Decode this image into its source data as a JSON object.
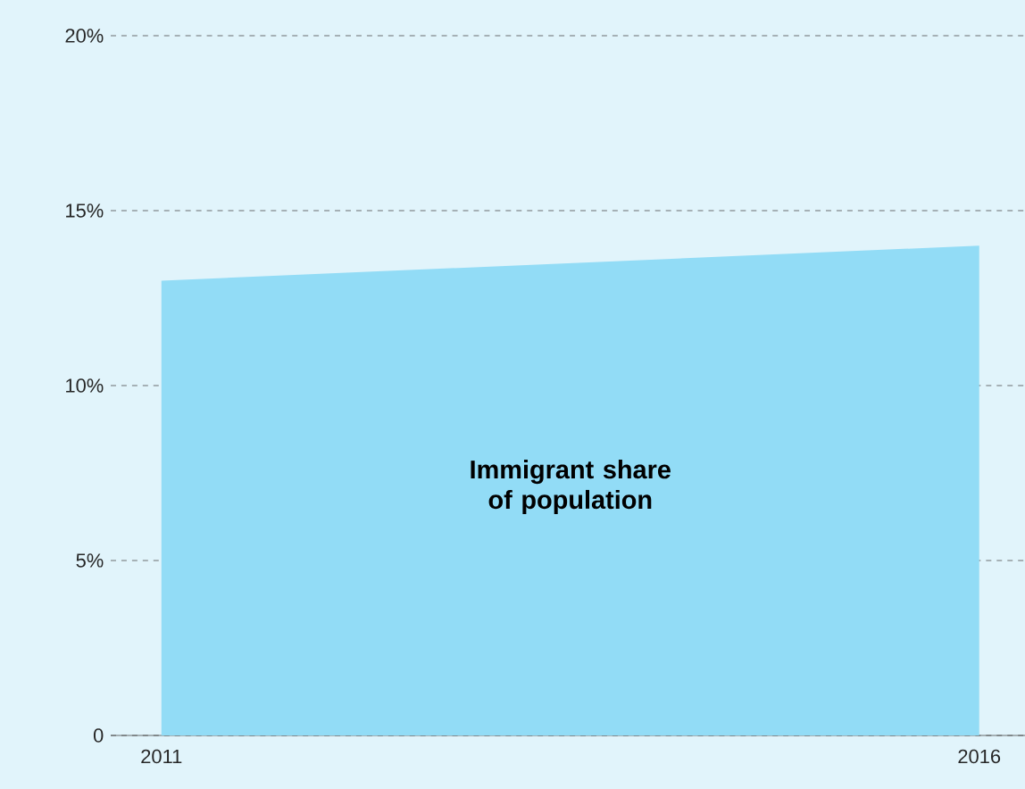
{
  "chart_data": {
    "type": "area",
    "x": [
      2011,
      2016
    ],
    "series": [
      {
        "name": "Immigrant share of population",
        "color": "#92dcf6",
        "values": [
          13,
          14
        ]
      }
    ],
    "xlim": [
      2010.69,
      2016.28
    ],
    "xticks": [
      2011,
      2016
    ],
    "ylim": [
      0,
      20
    ],
    "yticks": [
      {
        "value": 0,
        "label": "0"
      },
      {
        "value": 5,
        "label": "5%"
      },
      {
        "value": 10,
        "label": "10%"
      },
      {
        "value": 15,
        "label": "15%"
      },
      {
        "value": 20,
        "label": "20%"
      }
    ],
    "grid": "y"
  }
}
